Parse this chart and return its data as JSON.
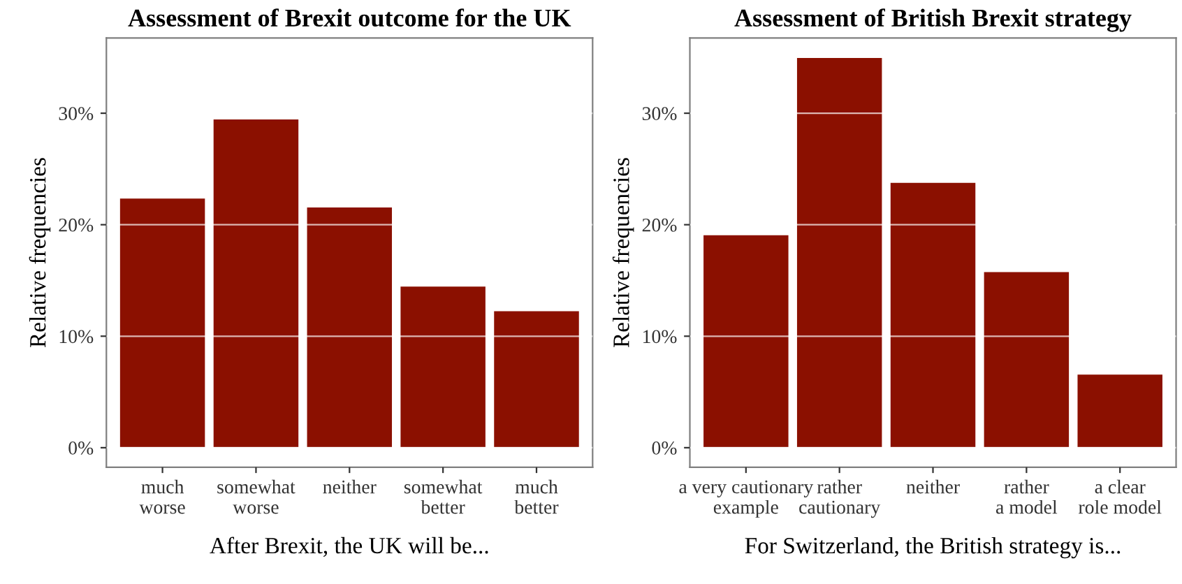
{
  "chart_data": [
    {
      "type": "bar",
      "title": "Assessment of Brexit outcome for the UK",
      "xlabel": "After Brexit, the UK will be...",
      "ylabel": "Relative frequencies",
      "categories": [
        "much\nworse",
        "somewhat\nworse",
        "neither",
        "somewhat\nbetter",
        "much\nbetter"
      ],
      "values": [
        22.4,
        29.5,
        21.6,
        14.5,
        12.3
      ],
      "color": "#8b1000",
      "ylim": [
        -1.75,
        36.75
      ],
      "yticks": [
        {
          "value": 0,
          "label": "0%"
        },
        {
          "value": 10,
          "label": "10%"
        },
        {
          "value": 20,
          "label": "20%"
        },
        {
          "value": 30,
          "label": "30%"
        }
      ],
      "grid": "y"
    },
    {
      "type": "bar",
      "title": "Assessment of British Brexit strategy",
      "xlabel": "For Switzerland, the British strategy is...",
      "ylabel": "Relative frequencies",
      "categories": [
        "a very cautionary\nexample",
        "rather\ncautionary",
        "neither",
        "rather\na model",
        "a clear\nrole model"
      ],
      "values": [
        19.1,
        35.0,
        23.8,
        15.8,
        6.6
      ],
      "color": "#8b1000",
      "ylim": [
        -1.75,
        36.75
      ],
      "yticks": [
        {
          "value": 0,
          "label": "0%"
        },
        {
          "value": 10,
          "label": "10%"
        },
        {
          "value": 20,
          "label": "20%"
        },
        {
          "value": 30,
          "label": "30%"
        }
      ],
      "grid": "y"
    }
  ]
}
